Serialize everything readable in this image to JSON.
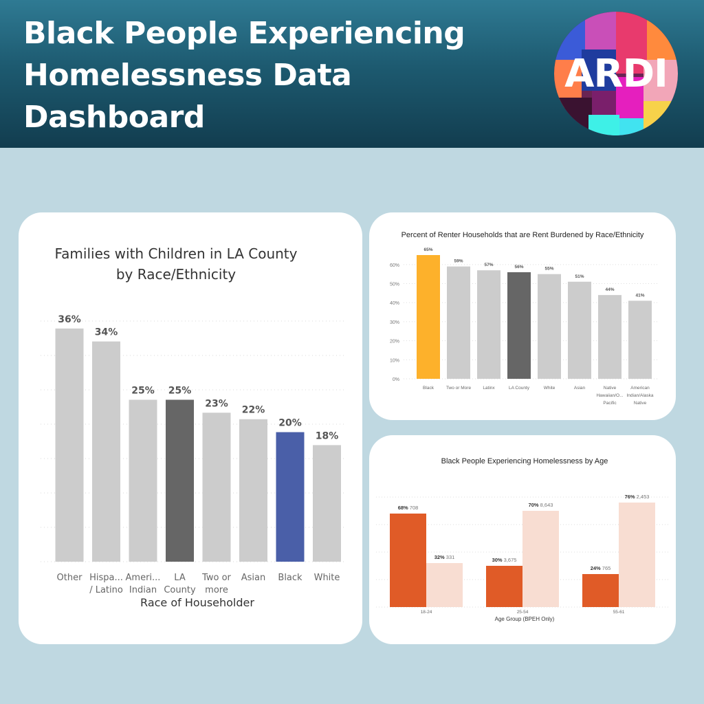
{
  "header": {
    "title_lines": [
      "Black People Experiencing",
      "Homelessness Data",
      "Dashboard"
    ]
  },
  "logo": {
    "text": "ARDI",
    "icon": "ardi-logo-icon"
  },
  "colors": {
    "header_dark": "#123d4f",
    "page_bg": "#bfd8e1",
    "bar_gray": "#cccccc",
    "bar_dark": "#666666",
    "bar_blue": "#4a5fa8",
    "bar_orange_yellow": "#fdb12b",
    "bar_orange": "#e05b27",
    "bar_peach": "#f8ddd2"
  },
  "chart_data": [
    {
      "type": "bar",
      "title": "Families with Children in LA County by Race/Ethnicity",
      "xlabel": "Race of Householder",
      "ylabel": "",
      "ylim": [
        0,
        0.38
      ],
      "grid": true,
      "categories": [
        "Other",
        "Hispa... / Latino",
        "Ameri... Indian",
        "LA County",
        "Two or more",
        "Asian",
        "Black",
        "White"
      ],
      "category_lines": [
        [
          "Other"
        ],
        [
          "Hispa...",
          "/ Latino"
        ],
        [
          "Ameri...",
          "Indian"
        ],
        [
          "LA",
          "County"
        ],
        [
          "Two or",
          "more"
        ],
        [
          "Asian"
        ],
        [
          "Black"
        ],
        [
          "White"
        ]
      ],
      "values": [
        0.36,
        0.34,
        0.25,
        0.25,
        0.23,
        0.22,
        0.2,
        0.18
      ],
      "labels": [
        "36%",
        "34%",
        "25%",
        "25%",
        "23%",
        "22%",
        "20%",
        "18%"
      ],
      "bar_colors": [
        "#cccccc",
        "#cccccc",
        "#cccccc",
        "#666666",
        "#cccccc",
        "#cccccc",
        "#4a5fa8",
        "#cccccc"
      ]
    },
    {
      "type": "bar",
      "title": "Percent of Renter Households that are Rent Burdened by Race/Ethnicity",
      "xlabel": "",
      "ylabel": "",
      "ylim": [
        0,
        0.65
      ],
      "grid": true,
      "yticks": [
        "0%",
        "10%",
        "20%",
        "30%",
        "40%",
        "50%",
        "60%"
      ],
      "categories": [
        "Black",
        "Two or More",
        "Latinx",
        "LA County",
        "White",
        "Asian",
        "Native Hawaiian/O... Pacific",
        "American Indian/Alaska Native"
      ],
      "category_lines": [
        [
          "Black"
        ],
        [
          "Two or More"
        ],
        [
          "Latinx"
        ],
        [
          "LA County"
        ],
        [
          "White"
        ],
        [
          "Asian"
        ],
        [
          "Native",
          "Hawaiian/O...",
          "Pacific"
        ],
        [
          "American",
          "Indian/Alaska",
          "Native"
        ]
      ],
      "values": [
        0.65,
        0.59,
        0.57,
        0.56,
        0.55,
        0.51,
        0.44,
        0.41
      ],
      "labels": [
        "65%",
        "59%",
        "57%",
        "56%",
        "55%",
        "51%",
        "44%",
        "41%"
      ],
      "bar_colors": [
        "#fdb12b",
        "#cccccc",
        "#cccccc",
        "#666666",
        "#cccccc",
        "#cccccc",
        "#cccccc",
        "#cccccc"
      ]
    },
    {
      "type": "bar",
      "title": "Black People Experiencing Homelessness by Age",
      "xlabel": "Age Group (BPEH Only)",
      "ylabel": "",
      "ylim": [
        0,
        0.8
      ],
      "grid": true,
      "categories": [
        "18-24",
        "25-54",
        "55-61"
      ],
      "series": [
        {
          "values": [
            0.68,
            0.3,
            0.24
          ],
          "pct": [
            "68%",
            "30%",
            "24%"
          ],
          "counts": [
            "708",
            "3,675",
            "765"
          ],
          "color": "#e05b27"
        },
        {
          "values": [
            0.32,
            0.7,
            0.76
          ],
          "pct": [
            "32%",
            "70%",
            "76%"
          ],
          "counts": [
            "331",
            "8,643",
            "2,453"
          ],
          "color": "#f8ddd2"
        }
      ]
    }
  ]
}
